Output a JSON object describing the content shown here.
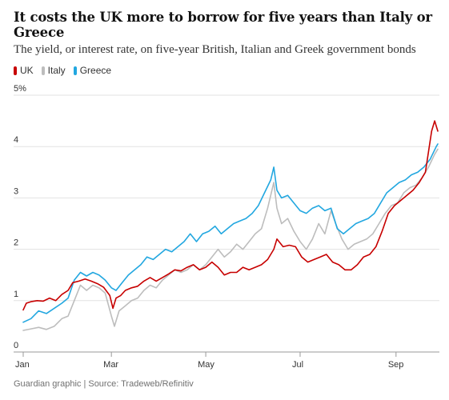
{
  "title": "It costs the UK more to borrow for five years than Italy or Greece",
  "subtitle": "The yield, or interest rate, on five-year British, Italian and Greek government bonds",
  "footer": "Guardian graphic | Source: Tradeweb/Refinitiv",
  "colors": {
    "UK": "#c70000",
    "Italy": "#bdbdbd",
    "Greece": "#22a7e0",
    "grid": "#e2e2e2",
    "axis": "#999999"
  },
  "chart_data": {
    "type": "line",
    "xlabel": "",
    "ylabel": "",
    "x_ticks": [
      "Jan",
      "Mar",
      "May",
      "Jul",
      "Sep"
    ],
    "y_ticks": [
      "0",
      "1",
      "2",
      "3",
      "4",
      "5%"
    ],
    "ylim": [
      0,
      5
    ],
    "x_range": [
      "2022-01-03",
      "2022-09-28"
    ],
    "grid": "horizontal",
    "legend": "top-left",
    "series": [
      {
        "name": "UK",
        "values": [
          [
            "2022-01-03",
            0.82
          ],
          [
            "2022-01-05",
            0.95
          ],
          [
            "2022-01-08",
            0.98
          ],
          [
            "2022-01-12",
            1.0
          ],
          [
            "2022-01-16",
            0.99
          ],
          [
            "2022-01-20",
            1.05
          ],
          [
            "2022-01-24",
            1.0
          ],
          [
            "2022-01-28",
            1.12
          ],
          [
            "2022-02-01",
            1.2
          ],
          [
            "2022-02-04",
            1.35
          ],
          [
            "2022-02-08",
            1.38
          ],
          [
            "2022-02-12",
            1.42
          ],
          [
            "2022-02-16",
            1.38
          ],
          [
            "2022-02-20",
            1.33
          ],
          [
            "2022-02-24",
            1.26
          ],
          [
            "2022-02-28",
            1.1
          ],
          [
            "2022-03-02",
            0.85
          ],
          [
            "2022-03-04",
            1.05
          ],
          [
            "2022-03-07",
            1.1
          ],
          [
            "2022-03-10",
            1.2
          ],
          [
            "2022-03-14",
            1.25
          ],
          [
            "2022-03-18",
            1.28
          ],
          [
            "2022-03-22",
            1.38
          ],
          [
            "2022-03-26",
            1.45
          ],
          [
            "2022-03-30",
            1.38
          ],
          [
            "2022-04-03",
            1.45
          ],
          [
            "2022-04-07",
            1.52
          ],
          [
            "2022-04-11",
            1.6
          ],
          [
            "2022-04-15",
            1.58
          ],
          [
            "2022-04-19",
            1.65
          ],
          [
            "2022-04-23",
            1.7
          ],
          [
            "2022-04-27",
            1.6
          ],
          [
            "2022-05-01",
            1.65
          ],
          [
            "2022-05-05",
            1.75
          ],
          [
            "2022-05-09",
            1.65
          ],
          [
            "2022-05-13",
            1.5
          ],
          [
            "2022-05-17",
            1.55
          ],
          [
            "2022-05-21",
            1.55
          ],
          [
            "2022-05-25",
            1.65
          ],
          [
            "2022-05-29",
            1.6
          ],
          [
            "2022-06-02",
            1.65
          ],
          [
            "2022-06-06",
            1.7
          ],
          [
            "2022-06-10",
            1.8
          ],
          [
            "2022-06-14",
            2.0
          ],
          [
            "2022-06-16",
            2.2
          ],
          [
            "2022-06-20",
            2.05
          ],
          [
            "2022-06-24",
            2.08
          ],
          [
            "2022-06-28",
            2.05
          ],
          [
            "2022-07-02",
            1.85
          ],
          [
            "2022-07-06",
            1.75
          ],
          [
            "2022-07-10",
            1.8
          ],
          [
            "2022-07-14",
            1.85
          ],
          [
            "2022-07-18",
            1.9
          ],
          [
            "2022-07-22",
            1.75
          ],
          [
            "2022-07-26",
            1.7
          ],
          [
            "2022-07-30",
            1.6
          ],
          [
            "2022-08-03",
            1.6
          ],
          [
            "2022-08-07",
            1.7
          ],
          [
            "2022-08-11",
            1.85
          ],
          [
            "2022-08-15",
            1.9
          ],
          [
            "2022-08-19",
            2.05
          ],
          [
            "2022-08-23",
            2.35
          ],
          [
            "2022-08-27",
            2.7
          ],
          [
            "2022-08-31",
            2.85
          ],
          [
            "2022-09-04",
            2.95
          ],
          [
            "2022-09-08",
            3.05
          ],
          [
            "2022-09-12",
            3.15
          ],
          [
            "2022-09-16",
            3.3
          ],
          [
            "2022-09-20",
            3.5
          ],
          [
            "2022-09-22",
            3.9
          ],
          [
            "2022-09-24",
            4.3
          ],
          [
            "2022-09-26",
            4.5
          ],
          [
            "2022-09-28",
            4.3
          ]
        ]
      },
      {
        "name": "Italy",
        "values": [
          [
            "2022-01-03",
            0.42
          ],
          [
            "2022-01-08",
            0.45
          ],
          [
            "2022-01-13",
            0.48
          ],
          [
            "2022-01-18",
            0.44
          ],
          [
            "2022-01-23",
            0.5
          ],
          [
            "2022-01-28",
            0.65
          ],
          [
            "2022-02-01",
            0.7
          ],
          [
            "2022-02-05",
            1.0
          ],
          [
            "2022-02-09",
            1.3
          ],
          [
            "2022-02-13",
            1.2
          ],
          [
            "2022-02-17",
            1.3
          ],
          [
            "2022-02-21",
            1.25
          ],
          [
            "2022-02-25",
            1.15
          ],
          [
            "2022-03-01",
            0.7
          ],
          [
            "2022-03-03",
            0.5
          ],
          [
            "2022-03-06",
            0.8
          ],
          [
            "2022-03-10",
            0.9
          ],
          [
            "2022-03-14",
            1.0
          ],
          [
            "2022-03-18",
            1.05
          ],
          [
            "2022-03-22",
            1.2
          ],
          [
            "2022-03-26",
            1.3
          ],
          [
            "2022-03-30",
            1.25
          ],
          [
            "2022-04-03",
            1.4
          ],
          [
            "2022-04-07",
            1.5
          ],
          [
            "2022-04-11",
            1.6
          ],
          [
            "2022-04-15",
            1.55
          ],
          [
            "2022-04-19",
            1.6
          ],
          [
            "2022-04-23",
            1.7
          ],
          [
            "2022-04-27",
            1.6
          ],
          [
            "2022-05-01",
            1.7
          ],
          [
            "2022-05-05",
            1.85
          ],
          [
            "2022-05-09",
            2.0
          ],
          [
            "2022-05-13",
            1.85
          ],
          [
            "2022-05-17",
            1.95
          ],
          [
            "2022-05-21",
            2.1
          ],
          [
            "2022-05-25",
            2.0
          ],
          [
            "2022-05-29",
            2.15
          ],
          [
            "2022-06-02",
            2.3
          ],
          [
            "2022-06-06",
            2.4
          ],
          [
            "2022-06-10",
            2.8
          ],
          [
            "2022-06-14",
            3.3
          ],
          [
            "2022-06-16",
            2.8
          ],
          [
            "2022-06-19",
            2.5
          ],
          [
            "2022-06-23",
            2.6
          ],
          [
            "2022-06-27",
            2.35
          ],
          [
            "2022-07-01",
            2.15
          ],
          [
            "2022-07-05",
            2.0
          ],
          [
            "2022-07-09",
            2.2
          ],
          [
            "2022-07-13",
            2.5
          ],
          [
            "2022-07-17",
            2.3
          ],
          [
            "2022-07-21",
            2.75
          ],
          [
            "2022-07-24",
            2.5
          ],
          [
            "2022-07-28",
            2.2
          ],
          [
            "2022-08-01",
            2.0
          ],
          [
            "2022-08-05",
            2.1
          ],
          [
            "2022-08-09",
            2.15
          ],
          [
            "2022-08-13",
            2.2
          ],
          [
            "2022-08-17",
            2.3
          ],
          [
            "2022-08-21",
            2.5
          ],
          [
            "2022-08-25",
            2.7
          ],
          [
            "2022-08-29",
            2.85
          ],
          [
            "2022-09-02",
            2.9
          ],
          [
            "2022-09-06",
            3.1
          ],
          [
            "2022-09-10",
            3.2
          ],
          [
            "2022-09-14",
            3.25
          ],
          [
            "2022-09-18",
            3.4
          ],
          [
            "2022-09-22",
            3.6
          ],
          [
            "2022-09-26",
            3.85
          ],
          [
            "2022-09-28",
            3.95
          ]
        ]
      },
      {
        "name": "Greece",
        "values": [
          [
            "2022-01-03",
            0.58
          ],
          [
            "2022-01-08",
            0.65
          ],
          [
            "2022-01-13",
            0.8
          ],
          [
            "2022-01-18",
            0.75
          ],
          [
            "2022-01-23",
            0.85
          ],
          [
            "2022-01-28",
            0.95
          ],
          [
            "2022-02-01",
            1.05
          ],
          [
            "2022-02-05",
            1.4
          ],
          [
            "2022-02-09",
            1.55
          ],
          [
            "2022-02-13",
            1.48
          ],
          [
            "2022-02-17",
            1.55
          ],
          [
            "2022-02-21",
            1.5
          ],
          [
            "2022-02-25",
            1.4
          ],
          [
            "2022-03-01",
            1.25
          ],
          [
            "2022-03-04",
            1.2
          ],
          [
            "2022-03-08",
            1.35
          ],
          [
            "2022-03-12",
            1.5
          ],
          [
            "2022-03-16",
            1.6
          ],
          [
            "2022-03-20",
            1.7
          ],
          [
            "2022-03-24",
            1.85
          ],
          [
            "2022-03-28",
            1.8
          ],
          [
            "2022-04-01",
            1.9
          ],
          [
            "2022-04-05",
            2.0
          ],
          [
            "2022-04-09",
            1.95
          ],
          [
            "2022-04-13",
            2.05
          ],
          [
            "2022-04-17",
            2.15
          ],
          [
            "2022-04-21",
            2.3
          ],
          [
            "2022-04-25",
            2.15
          ],
          [
            "2022-04-29",
            2.3
          ],
          [
            "2022-05-03",
            2.35
          ],
          [
            "2022-05-07",
            2.45
          ],
          [
            "2022-05-11",
            2.3
          ],
          [
            "2022-05-15",
            2.4
          ],
          [
            "2022-05-19",
            2.5
          ],
          [
            "2022-05-23",
            2.55
          ],
          [
            "2022-05-27",
            2.6
          ],
          [
            "2022-05-31",
            2.7
          ],
          [
            "2022-06-04",
            2.85
          ],
          [
            "2022-06-08",
            3.1
          ],
          [
            "2022-06-12",
            3.35
          ],
          [
            "2022-06-14",
            3.6
          ],
          [
            "2022-06-16",
            3.15
          ],
          [
            "2022-06-19",
            3.0
          ],
          [
            "2022-06-23",
            3.05
          ],
          [
            "2022-06-27",
            2.9
          ],
          [
            "2022-07-01",
            2.75
          ],
          [
            "2022-07-05",
            2.7
          ],
          [
            "2022-07-09",
            2.8
          ],
          [
            "2022-07-13",
            2.85
          ],
          [
            "2022-07-17",
            2.75
          ],
          [
            "2022-07-21",
            2.8
          ],
          [
            "2022-07-25",
            2.4
          ],
          [
            "2022-07-29",
            2.3
          ],
          [
            "2022-08-02",
            2.4
          ],
          [
            "2022-08-06",
            2.5
          ],
          [
            "2022-08-10",
            2.55
          ],
          [
            "2022-08-14",
            2.6
          ],
          [
            "2022-08-18",
            2.7
          ],
          [
            "2022-08-22",
            2.9
          ],
          [
            "2022-08-26",
            3.1
          ],
          [
            "2022-08-30",
            3.2
          ],
          [
            "2022-09-03",
            3.3
          ],
          [
            "2022-09-07",
            3.35
          ],
          [
            "2022-09-11",
            3.45
          ],
          [
            "2022-09-15",
            3.5
          ],
          [
            "2022-09-19",
            3.6
          ],
          [
            "2022-09-23",
            3.75
          ],
          [
            "2022-09-27",
            4.0
          ],
          [
            "2022-09-28",
            4.05
          ]
        ]
      }
    ]
  }
}
